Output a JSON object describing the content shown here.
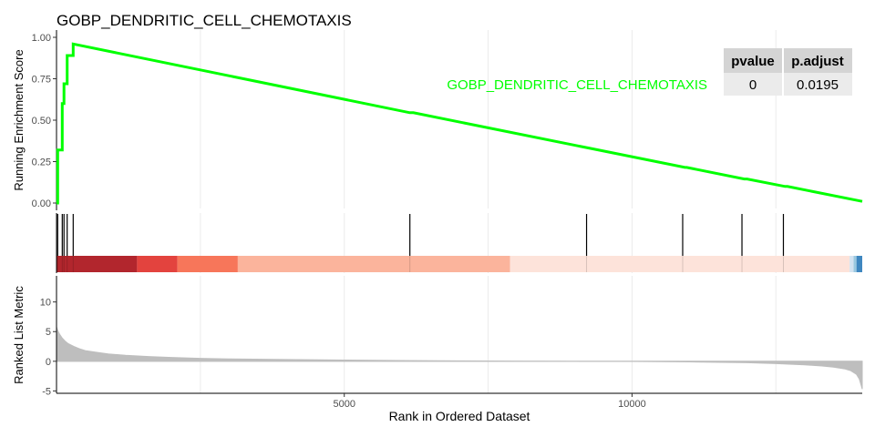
{
  "chart_data": [
    {
      "panel": "running-enrichment",
      "type": "line",
      "title": "GOBP_DENDRITIC_CELL_CHEMOTAXIS",
      "ylabel": "Running Enrichment Score",
      "xlim": [
        0,
        14000
      ],
      "ylim": [
        0,
        1
      ],
      "yticks": [
        "0.00",
        "0.25",
        "0.50",
        "0.75",
        "1.00"
      ],
      "grid": true,
      "series": [
        {
          "name": "GOBP_DENDRITIC_CELL_CHEMOTAXIS",
          "color": "#00ff00",
          "x": [
            0,
            20,
            20,
            100,
            100,
            130,
            130,
            185,
            185,
            290,
            290,
            6140,
            6200,
            9270,
            10920,
            10950,
            11950,
            12000,
            12660,
            12700,
            14000
          ],
          "y": [
            0,
            0.0,
            0.32,
            0.32,
            0.6,
            0.6,
            0.72,
            0.72,
            0.89,
            0.89,
            0.96,
            0.545,
            0.545,
            0.33,
            0.215,
            0.215,
            0.145,
            0.145,
            0.1,
            0.1,
            0.01
          ]
        }
      ],
      "table": {
        "headers": [
          "pvalue",
          "p.adjust"
        ],
        "rows": [
          [
            "0",
            "0.0195"
          ]
        ]
      }
    },
    {
      "panel": "gene-hits",
      "type": "rug",
      "hit_ranks": [
        20,
        100,
        130,
        185,
        290,
        6140,
        9210,
        10880,
        11910,
        12630
      ],
      "color_bands": [
        {
          "from": 0,
          "to": 1400,
          "color": "#b2262d"
        },
        {
          "from": 1400,
          "to": 2100,
          "color": "#e3433e"
        },
        {
          "from": 2100,
          "to": 3150,
          "color": "#f7765a"
        },
        {
          "from": 3150,
          "to": 7880,
          "color": "#fbb49c"
        },
        {
          "from": 7880,
          "to": 13780,
          "color": "#fde3da"
        },
        {
          "from": 13780,
          "to": 13850,
          "color": "#d3e3f1"
        },
        {
          "from": 13850,
          "to": 13900,
          "color": "#9ac8e0"
        },
        {
          "from": 13900,
          "to": 14000,
          "color": "#3f87c0"
        }
      ]
    },
    {
      "panel": "ranked-metric",
      "type": "area",
      "ylabel": "Ranked List Metric",
      "xlabel": "Rank in Ordered Dataset",
      "xlim": [
        0,
        14000
      ],
      "ylim": [
        -5.4,
        14.4
      ],
      "xticks": [
        5000,
        10000
      ],
      "yticks": [
        -5,
        0,
        5,
        10
      ],
      "fill": "#bebebe",
      "x": [
        0,
        20,
        50,
        100,
        150,
        200,
        300,
        400,
        500,
        700,
        900,
        1200,
        1600,
        2000,
        2500,
        3000,
        4000,
        5000,
        6000,
        7000,
        8000,
        9000,
        10000,
        11000,
        12000,
        12500,
        13000,
        13300,
        13500,
        13700,
        13800,
        13900,
        13950,
        14000
      ],
      "values": [
        5.8,
        5.2,
        4.6,
        3.9,
        3.4,
        3.0,
        2.5,
        2.1,
        1.8,
        1.5,
        1.25,
        1.0,
        0.8,
        0.65,
        0.5,
        0.4,
        0.3,
        0.2,
        0.12,
        0.07,
        0.03,
        0.0,
        -0.03,
        -0.1,
        -0.25,
        -0.4,
        -0.6,
        -0.8,
        -1.0,
        -1.3,
        -1.6,
        -2.2,
        -3.0,
        -4.7
      ]
    }
  ]
}
